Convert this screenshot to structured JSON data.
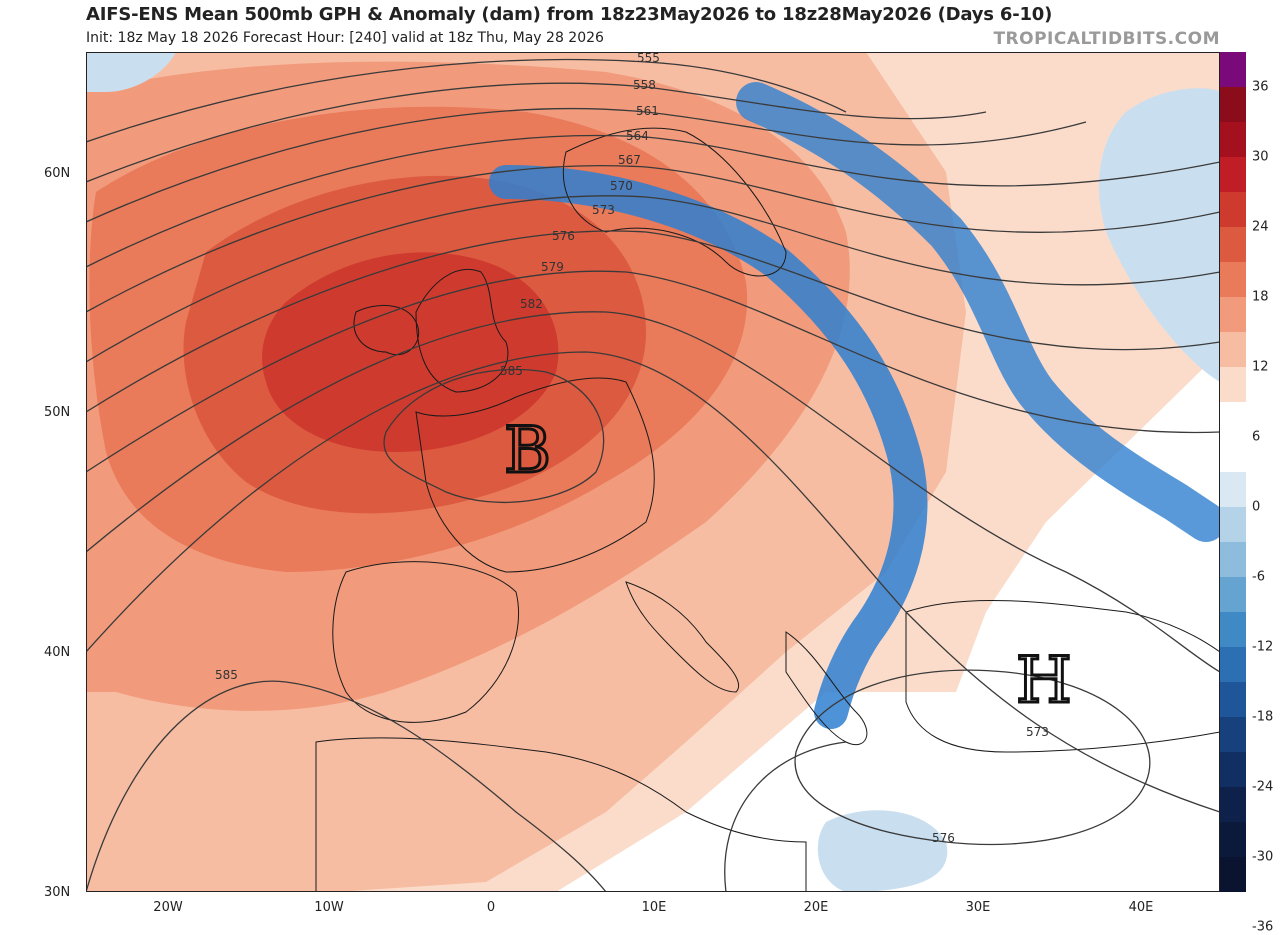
{
  "header": {
    "title": "AIFS-ENS Mean 500mb GPH & Anomaly (dam) from 18z23May2026 to 18z28May2026 (Days 6-10)",
    "subtitle": "Init: 18z May 18 2026   Forecast Hour: [240]   valid at 18z Thu, May 28 2026",
    "brand": "TROPICALTIDBITS.COM"
  },
  "axes": {
    "lat_labels": [
      "60N",
      "50N",
      "40N",
      "30N"
    ],
    "lon_labels": [
      "20W",
      "10W",
      "0",
      "10E",
      "20E",
      "30E",
      "40E"
    ]
  },
  "contours": {
    "labels": [
      "555",
      "558",
      "561",
      "564",
      "567",
      "570",
      "573",
      "576",
      "579",
      "582",
      "585",
      "585",
      "573",
      "576"
    ]
  },
  "annotations": {
    "low_marker": "B",
    "high_marker": "H"
  },
  "colorbar": {
    "ticks": [
      "36",
      "30",
      "24",
      "18",
      "12",
      "6",
      "0",
      "-6",
      "-12",
      "-18",
      "-24",
      "-30",
      "-36"
    ],
    "colors": [
      "#7a0a7a",
      "#8b0d1c",
      "#a5101f",
      "#c01d26",
      "#cf3a2f",
      "#dc5a40",
      "#e97a5a",
      "#f19b7c",
      "#f7bda3",
      "#fbdccb",
      "#ffffff",
      "#ffffff",
      "#d9e8f2",
      "#b4d3e8",
      "#8dbcdc",
      "#65a3d0",
      "#3f89c4",
      "#2c6fb2",
      "#1f569a",
      "#16417d",
      "#112f62",
      "#0d214a",
      "#0b1a3a",
      "#0a1430"
    ]
  }
}
